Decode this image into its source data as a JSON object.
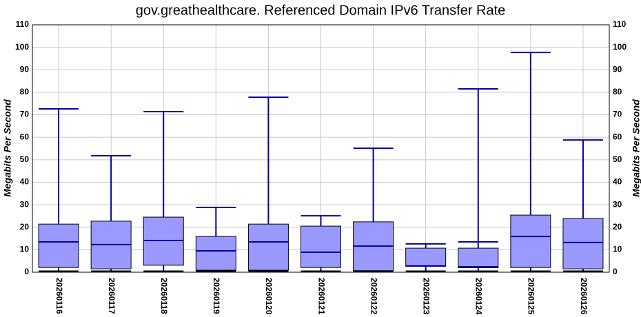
{
  "chart_data": {
    "type": "box",
    "title": "gov.greathealthcare. Referenced Domain IPv6 Transfer Rate",
    "y_label": "Megabits Per Second",
    "y2_label": "Megabits Per Second",
    "categories": [
      "20260116",
      "20260117",
      "20260118",
      "20260119",
      "20260120",
      "20260121",
      "20260122",
      "20260123",
      "20260124",
      "20260125",
      "20260126"
    ],
    "max": [
      72.6,
      51.8,
      71.4,
      28.8,
      77.8,
      25.1,
      55.1,
      12.6,
      81.5,
      97.7,
      58.8
    ],
    "extra_cap": [
      null,
      null,
      null,
      null,
      null,
      null,
      null,
      null,
      13.5,
      null,
      null
    ],
    "q3": [
      21.4,
      22.7,
      24.5,
      15.9,
      21.4,
      20.5,
      22.4,
      10.7,
      10.7,
      25.4,
      23.9
    ],
    "median": [
      13.5,
      12.3,
      14.1,
      9.5,
      13.5,
      8.9,
      11.6,
      2.8,
      2.4,
      15.9,
      13.2
    ],
    "q1": [
      2.1,
      1.5,
      3.1,
      0.9,
      0.9,
      2.1,
      0.6,
      2.6,
      2.0,
      2.1,
      1.5
    ],
    "min": [
      0.3,
      0.3,
      0.3,
      0.5,
      0.4,
      0.3,
      0.4,
      0.3,
      0.3,
      0.3,
      0.3
    ],
    "box_color": "#9999ff",
    "whisker_color": "#0000aa",
    "ylim": [
      0,
      110
    ],
    "yticks": [
      0,
      10,
      20,
      30,
      40,
      50,
      60,
      70,
      80,
      90,
      100,
      110
    ],
    "y2lim": [
      0,
      110
    ],
    "y2ticks": [
      0,
      10,
      20,
      30,
      40,
      50,
      60,
      70,
      80,
      90,
      100,
      110
    ],
    "grid": true
  }
}
